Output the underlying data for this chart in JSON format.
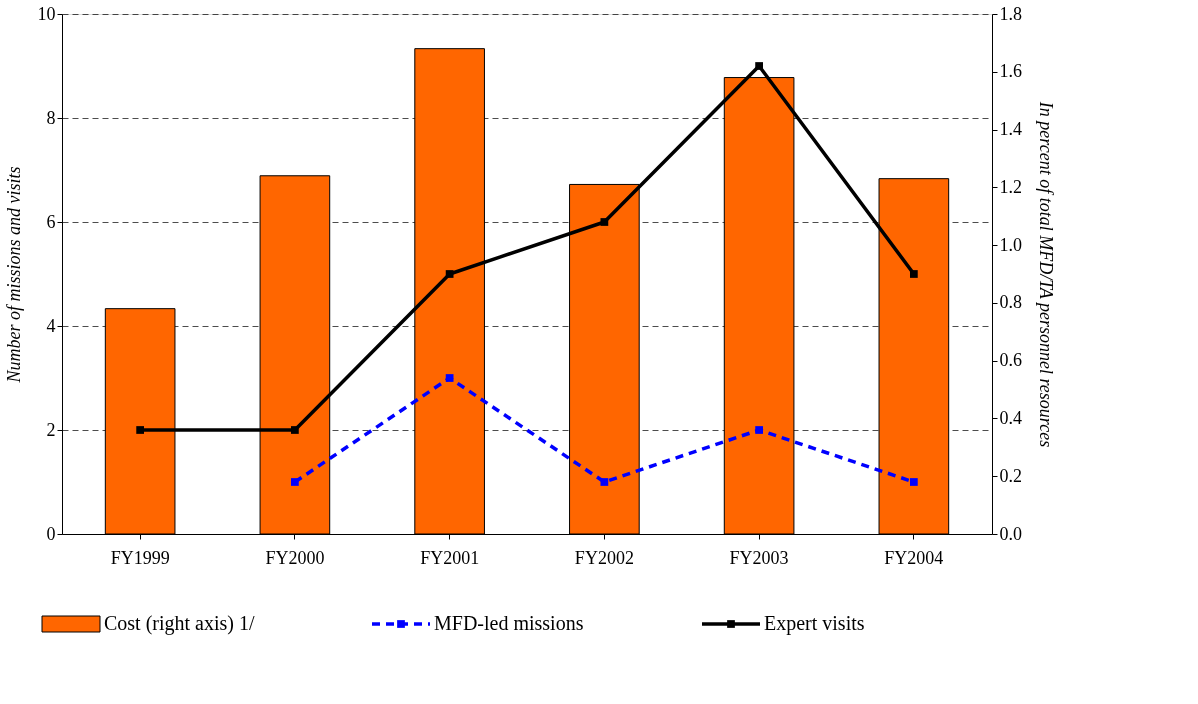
{
  "chart_data": {
    "type": "bar",
    "categories": [
      "FY1999",
      "FY2000",
      "FY2001",
      "FY2002",
      "FY2003",
      "FY2004"
    ],
    "ylabel": "Number of missions and visits",
    "y2label": "In percent of total MFD/TA personnel resources",
    "ylim": [
      0,
      10
    ],
    "yticks": [
      0,
      2,
      4,
      6,
      8,
      10
    ],
    "y2lim": [
      0,
      1.8
    ],
    "y2ticks": [
      {
        "value": 0,
        "label": "0.0"
      },
      {
        "value": 0.2,
        "label": "0.2"
      },
      {
        "value": 0.4,
        "label": "0.4"
      },
      {
        "value": 0.6,
        "label": "0.6"
      },
      {
        "value": 0.8,
        "label": "0.8"
      },
      {
        "value": 1,
        "label": "1.0"
      },
      {
        "value": 1.2,
        "label": "1.2"
      },
      {
        "value": 1.4,
        "label": "1.4"
      },
      {
        "value": 1.6,
        "label": "1.6"
      },
      {
        "value": 1.8,
        "label": "1.8"
      }
    ],
    "grid": "y",
    "legend": "bottom",
    "series": [
      {
        "name": "Cost (right axis) 1/",
        "axis": "y2",
        "color": "#ff6600",
        "values": [
          0.78,
          1.24,
          1.68,
          1.21,
          1.58,
          1.23
        ]
      },
      {
        "name": "MFD-led missions",
        "type": "line",
        "color": "#0000ff",
        "line_style": "dashed",
        "marker": "square",
        "values": [
          null,
          1,
          3,
          1,
          2,
          1
        ]
      },
      {
        "name": "Expert visits",
        "type": "line",
        "color": "#000000",
        "line_style": "solid",
        "marker": "square",
        "values": [
          2,
          2,
          5,
          6,
          9,
          5
        ]
      }
    ]
  }
}
